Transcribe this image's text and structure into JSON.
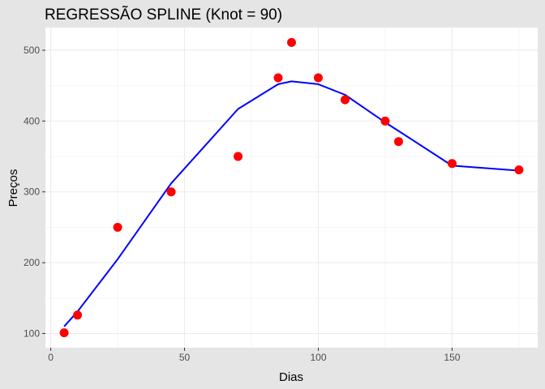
{
  "chart_data": {
    "type": "scatter",
    "title": "REGRESSÃO SPLINE (Knot = 90)",
    "xlabel": "Dias",
    "ylabel": "Preços",
    "xlim": [
      -2,
      182
    ],
    "ylim": [
      80,
      532
    ],
    "x_ticks": [
      0,
      50,
      100,
      150
    ],
    "y_ticks": [
      100,
      200,
      300,
      400,
      500
    ],
    "grid": true,
    "legend": "none",
    "series": [
      {
        "type": "scatter",
        "color": "#ff0000",
        "points": [
          {
            "x": 5,
            "y": 101
          },
          {
            "x": 10,
            "y": 126
          },
          {
            "x": 25,
            "y": 250
          },
          {
            "x": 45,
            "y": 300
          },
          {
            "x": 70,
            "y": 350
          },
          {
            "x": 85,
            "y": 461
          },
          {
            "x": 90,
            "y": 511
          },
          {
            "x": 100,
            "y": 461
          },
          {
            "x": 110,
            "y": 430
          },
          {
            "x": 125,
            "y": 400
          },
          {
            "x": 130,
            "y": 371
          },
          {
            "x": 150,
            "y": 340
          },
          {
            "x": 175,
            "y": 331
          }
        ]
      },
      {
        "type": "line",
        "color": "#0000ff",
        "points": [
          {
            "x": 5,
            "y": 110
          },
          {
            "x": 10,
            "y": 131
          },
          {
            "x": 25,
            "y": 205
          },
          {
            "x": 45,
            "y": 312
          },
          {
            "x": 70,
            "y": 417
          },
          {
            "x": 85,
            "y": 452
          },
          {
            "x": 90,
            "y": 456
          },
          {
            "x": 100,
            "y": 452
          },
          {
            "x": 110,
            "y": 437
          },
          {
            "x": 125,
            "y": 398
          },
          {
            "x": 130,
            "y": 386
          },
          {
            "x": 150,
            "y": 337
          },
          {
            "x": 175,
            "y": 330
          }
        ]
      }
    ]
  }
}
